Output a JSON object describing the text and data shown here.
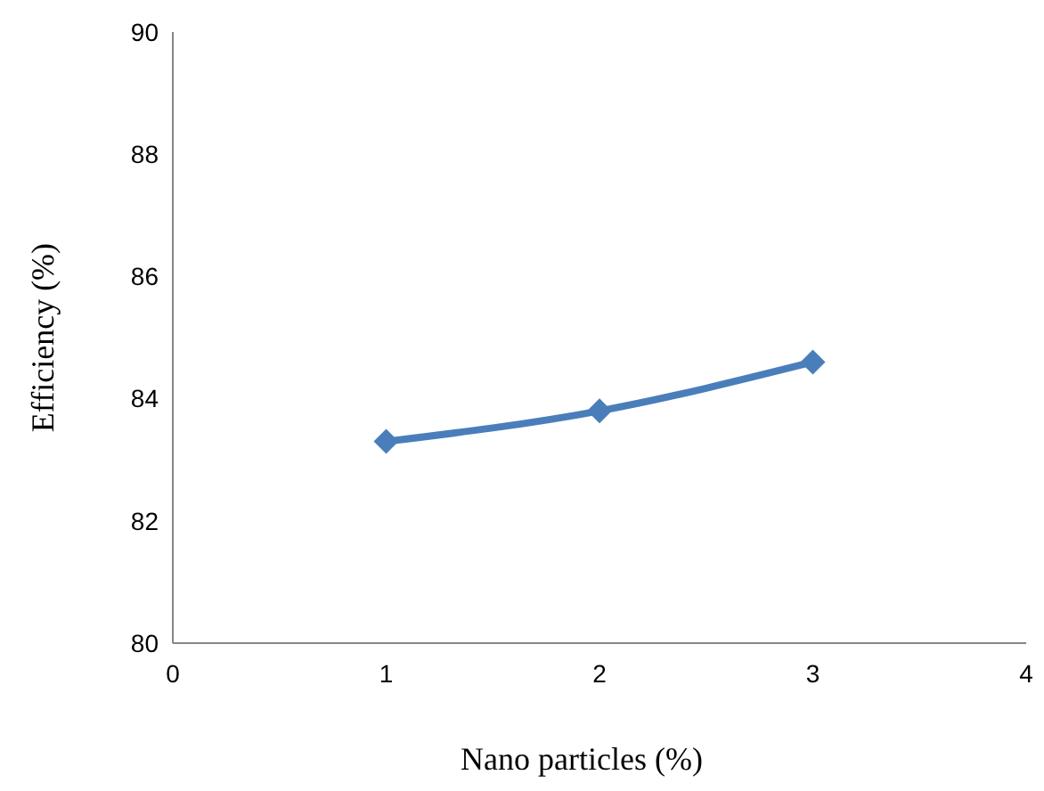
{
  "chart_data": {
    "type": "line",
    "xlabel": "Nano particles (%)",
    "ylabel": "Efficiency (%)",
    "x": [
      1,
      2,
      3
    ],
    "series": [
      {
        "color": "#4a7ebb",
        "values": [
          83.3,
          83.8,
          84.6
        ]
      }
    ],
    "xlim": [
      0,
      4
    ],
    "xticks": [
      0,
      1,
      2,
      3,
      4
    ],
    "ylim": [
      80,
      90
    ],
    "yticks": [
      80,
      82,
      84,
      86,
      88,
      90
    ],
    "grid": false,
    "marker": "diamond",
    "line_style": "solid"
  }
}
